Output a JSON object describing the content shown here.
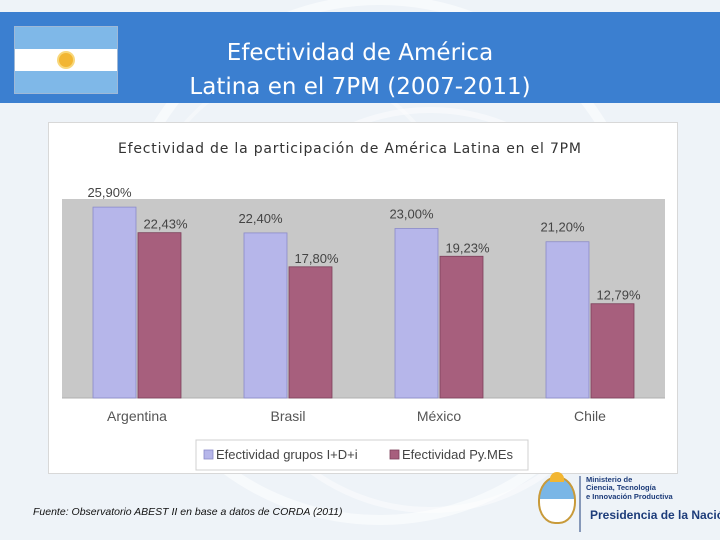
{
  "header": {
    "title_line1": "Efectividad de América",
    "title_line2": "Latina en el 7PM (2007-2011)",
    "flag_icon": "argentina-flag-icon",
    "color": "#3b7fd0"
  },
  "chart_data": {
    "type": "bar",
    "title": "Efectividad de la participación de América Latina en el 7PM",
    "categories": [
      "Argentina",
      "Brasil",
      "México",
      "Chile"
    ],
    "series": [
      {
        "name": "Efectividad grupos I+D+i",
        "values": [
          25.9,
          22.4,
          23.0,
          21.2
        ],
        "labels": [
          "25,90%",
          "22,40%",
          "23,00%",
          "21,20%"
        ],
        "color": "#b6b6ea"
      },
      {
        "name": "Efectividad Py.MEs",
        "values": [
          22.43,
          17.8,
          19.23,
          12.79
        ],
        "labels": [
          "22,43%",
          "17,80%",
          "19,23%",
          "12,79%"
        ],
        "color": "#a75f7d"
      }
    ],
    "ylim": [
      0,
      27
    ],
    "grid": false,
    "legend": "bottom"
  },
  "footer": {
    "source": "Fuente: Observatorio ABEST II en base a datos de CORDA (2011)",
    "logo_icon": "government-seal-icon",
    "ministry_line1": "Ministerio de",
    "ministry_line2": "Ciencia, Tecnología",
    "ministry_line3": "e Innovación Productiva",
    "presidencia": "Presidencia de la Nación"
  }
}
